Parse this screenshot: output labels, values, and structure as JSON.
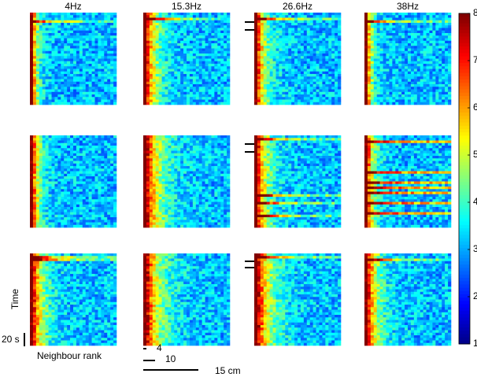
{
  "column_labels": [
    "4Hz",
    "15.3Hz",
    "26.6Hz",
    "38Hz"
  ],
  "colorbar": {
    "lim": [
      1,
      8
    ],
    "ticks": [
      1,
      2,
      3,
      4,
      5,
      6,
      7,
      8
    ]
  },
  "labels": {
    "y_axis": "Time",
    "x_axis": "Neighbour rank",
    "time_scale": "20 s",
    "scale_small": "4",
    "scale_medium": "10",
    "scale_large": "15 cm"
  }
}
